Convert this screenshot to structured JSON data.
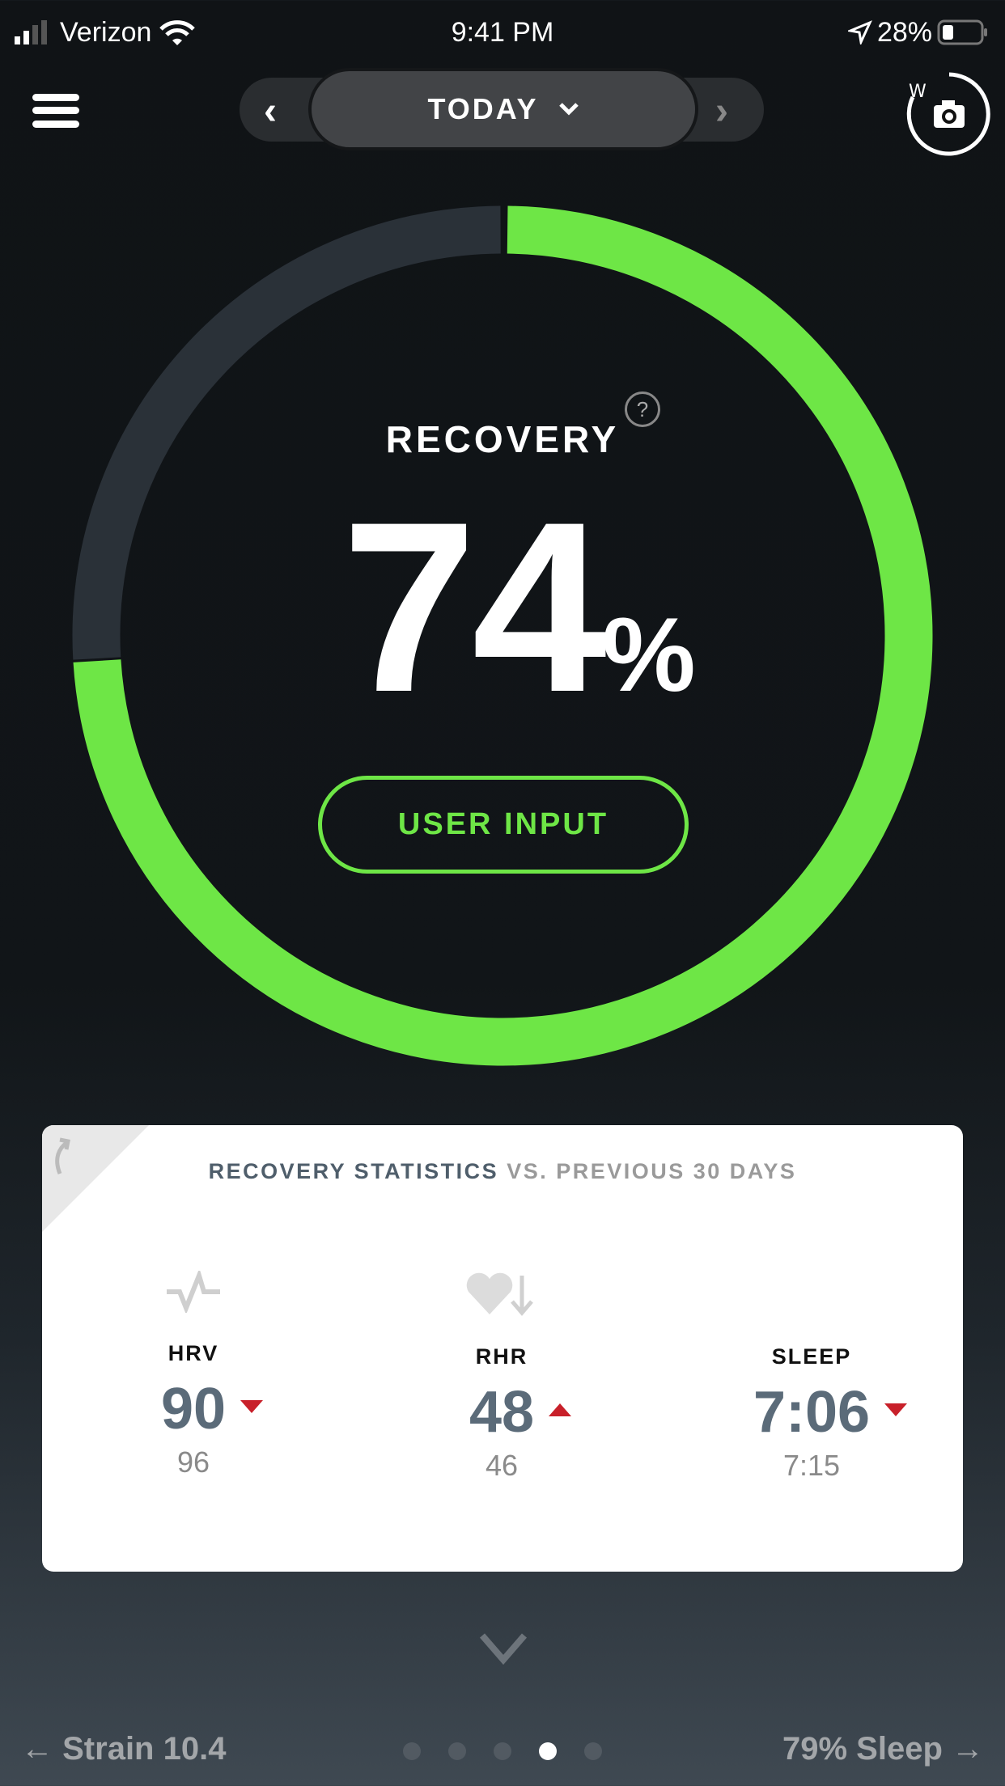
{
  "status_bar": {
    "carrier": "Verizon",
    "time": "9:41 PM",
    "battery": "28%"
  },
  "header": {
    "date_label": "TODAY",
    "prev": "‹",
    "next": "›"
  },
  "recovery": {
    "title": "RECOVERY",
    "help": "?",
    "value": "74",
    "unit": "%",
    "percent": 74,
    "button": "USER INPUT",
    "accent": "#6ee646",
    "track": "#2a3138"
  },
  "stats": {
    "title_main": "RECOVERY STATISTICS",
    "title_suffix": "VS. PREVIOUS 30 DAYS",
    "items": [
      {
        "icon": "hrv-pulse-icon",
        "label": "HRV",
        "value": "90",
        "trend": "down",
        "previous": "96"
      },
      {
        "icon": "heart-down-icon",
        "label": "RHR",
        "value": "48",
        "trend": "up",
        "previous": "46"
      },
      {
        "icon": "moon-icon",
        "label": "SLEEP",
        "value": "7:06",
        "trend": "down",
        "previous": "7:15"
      }
    ]
  },
  "footer": {
    "left": "Strain 10.4",
    "right": "79% Sleep",
    "pages": 5,
    "active_page": 4
  }
}
